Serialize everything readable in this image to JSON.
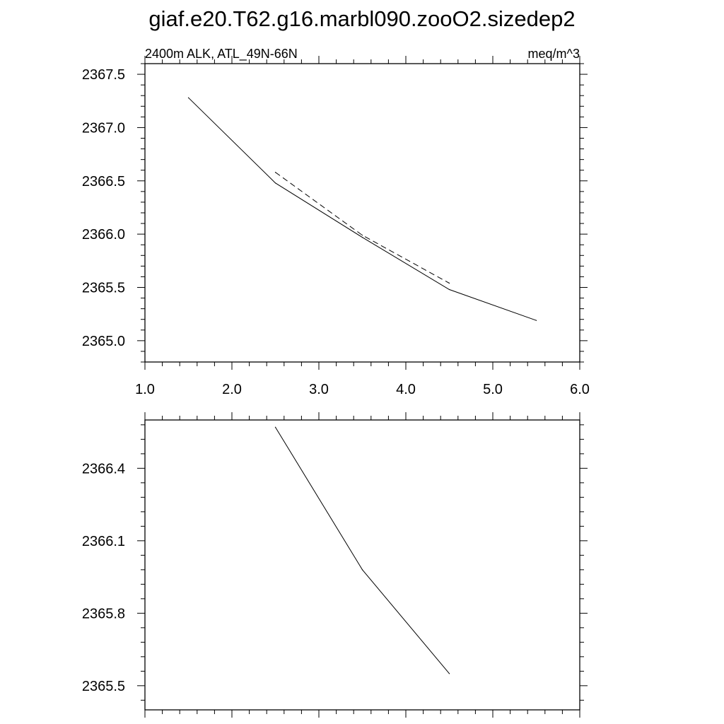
{
  "page_title": "giaf.e20.T62.g16.marbl090.zooO2.sizedep2",
  "chart_data": [
    {
      "type": "line",
      "left_label": "2400m ALK, ATL_49N-66N",
      "right_label": "meq/m^3",
      "xlim": [
        1.0,
        6.0
      ],
      "ylim": [
        2364.8,
        2367.6
      ],
      "x_ticks": [
        1.0,
        2.0,
        3.0,
        4.0,
        5.0,
        6.0
      ],
      "x_tick_labels": [
        "1.0",
        "2.0",
        "3.0",
        "4.0",
        "5.0",
        "6.0"
      ],
      "y_ticks": [
        2365.0,
        2365.5,
        2366.0,
        2366.5,
        2367.0,
        2367.5
      ],
      "y_tick_labels": [
        "2365.0",
        "2365.5",
        "2366.0",
        "2366.5",
        "2367.0",
        "2367.5"
      ],
      "grid": false,
      "series": [
        {
          "style": "solid",
          "color": "#000000",
          "x": [
            1.5,
            2.5,
            3.5,
            4.5,
            5.5
          ],
          "y": [
            2367.28,
            2366.48,
            2365.97,
            2365.48,
            2365.19
          ]
        },
        {
          "style": "dashed",
          "color": "#000000",
          "x": [
            2.5,
            3.5,
            4.5
          ],
          "y": [
            2366.58,
            2365.99,
            2365.54
          ]
        }
      ]
    },
    {
      "type": "line",
      "xlim": [
        1.0,
        6.0
      ],
      "ylim": [
        2365.4,
        2366.6
      ],
      "x_ticks": [
        1.0,
        2.0,
        3.0,
        4.0,
        5.0,
        6.0
      ],
      "x_tick_labels": [],
      "y_ticks": [
        2365.5,
        2365.8,
        2366.1,
        2366.4
      ],
      "y_tick_labels": [
        "2365.5",
        "2365.8",
        "2366.1",
        "2366.4"
      ],
      "grid": false,
      "series": [
        {
          "style": "solid",
          "color": "#000000",
          "x": [
            2.5,
            3.5,
            4.5
          ],
          "y": [
            2366.57,
            2365.98,
            2365.55
          ]
        }
      ]
    }
  ]
}
